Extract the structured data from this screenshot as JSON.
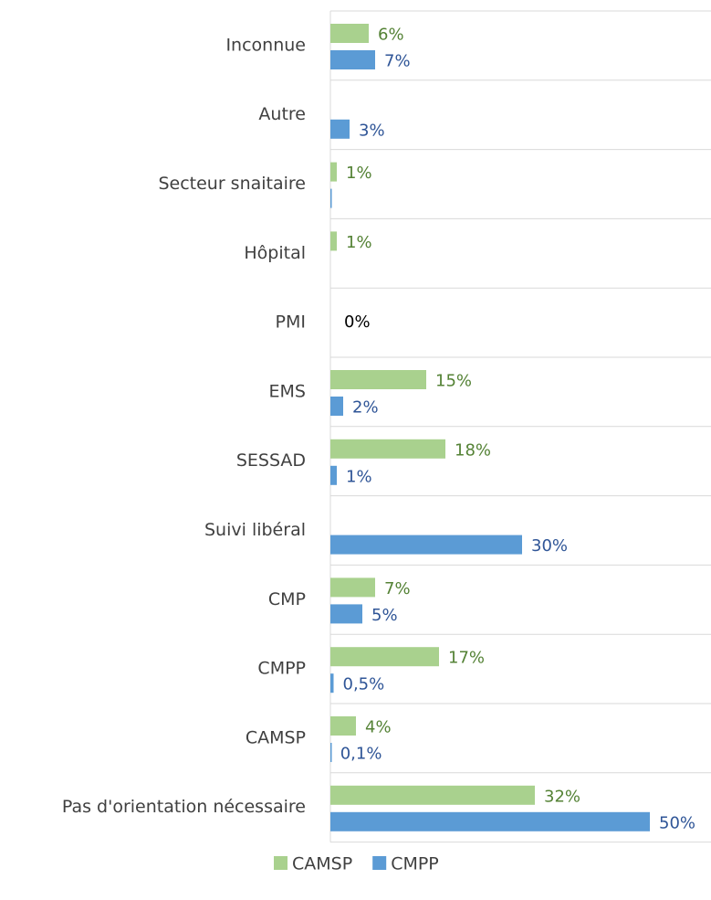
{
  "chart_data": {
    "type": "bar",
    "orientation": "horizontal",
    "categories": [
      "Inconnue",
      "Autre",
      "Secteur snaitaire",
      "Hôpital",
      "PMI",
      "EMS",
      "SESSAD",
      "Suivi libéral",
      "CMP",
      "CMPP",
      "CAMSP",
      "Pas d'orientation nécessaire"
    ],
    "series": [
      {
        "name": "CAMSP",
        "color": "#a9d18e",
        "label_color": "#548235",
        "values": [
          6,
          null,
          1,
          1,
          null,
          15,
          18,
          null,
          7,
          17,
          4,
          32
        ],
        "value_labels": [
          "6%",
          null,
          "1%",
          "1%",
          null,
          "15%",
          "18%",
          null,
          "7%",
          "17%",
          "4%",
          "32%"
        ]
      },
      {
        "name": "CMPP",
        "color": "#5b9bd5",
        "label_color": "#2f5597",
        "values": [
          7,
          3,
          0.1,
          null,
          null,
          2,
          1,
          30,
          5,
          0.5,
          0.1,
          50
        ],
        "value_labels": [
          "7%",
          "3%",
          null,
          null,
          null,
          "2%",
          "1%",
          "30%",
          "5%",
          "0,5%",
          "0,1%",
          "50%"
        ]
      }
    ],
    "annotations": [
      {
        "text": "0%",
        "value": 0,
        "category": "PMI"
      }
    ],
    "grid": true,
    "legend": "bottom"
  }
}
